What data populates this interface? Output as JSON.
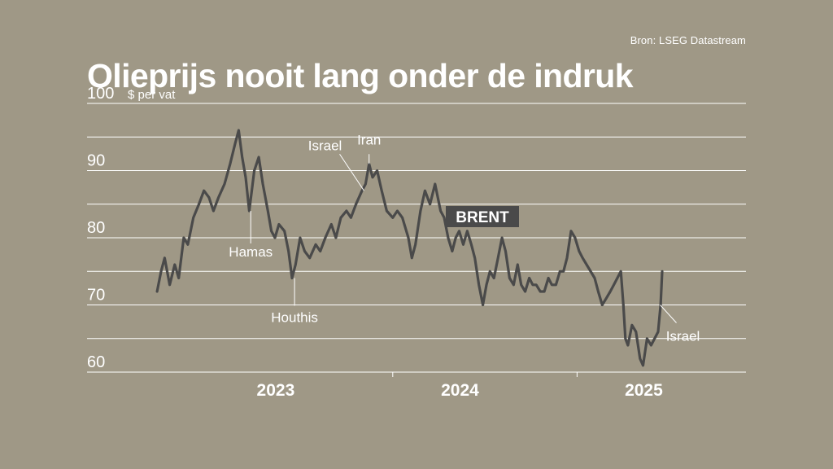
{
  "source": "Bron: LSEG Datastream",
  "title": "Olieprijs nooit lang onder de indruk",
  "chart_data": {
    "type": "line",
    "ylabel": "$ per vat",
    "ylim": [
      60,
      100
    ],
    "y_ticks": [
      60,
      70,
      80,
      90,
      100
    ],
    "xlim": [
      "2022-09-15",
      "2025-07-31"
    ],
    "x_ticks": [
      {
        "label": "2023",
        "date": "2023-07-01"
      },
      {
        "label": "2024",
        "date": "2024-07-01"
      },
      {
        "label": "2025",
        "date": "2025-07-01"
      }
    ],
    "year_boundaries": [
      "2024-01-01",
      "2025-01-01"
    ],
    "grid": true,
    "series": [
      {
        "name": "BRENT",
        "color": "#4a4a4a",
        "points": [
          [
            "2022-09-20",
            72
          ],
          [
            "2022-09-28",
            75
          ],
          [
            "2022-10-05",
            77
          ],
          [
            "2022-10-15",
            73
          ],
          [
            "2022-10-25",
            76
          ],
          [
            "2022-11-02",
            74
          ],
          [
            "2022-11-12",
            80
          ],
          [
            "2022-11-20",
            79
          ],
          [
            "2022-12-01",
            83
          ],
          [
            "2022-12-12",
            85
          ],
          [
            "2022-12-22",
            87
          ],
          [
            "2023-01-01",
            86
          ],
          [
            "2023-01-10",
            84
          ],
          [
            "2023-01-20",
            86
          ],
          [
            "2023-02-01",
            88
          ],
          [
            "2023-02-12",
            91
          ],
          [
            "2023-02-22",
            94
          ],
          [
            "2023-03-01",
            96
          ],
          [
            "2023-03-08",
            92
          ],
          [
            "2023-03-15",
            89
          ],
          [
            "2023-03-22",
            84
          ],
          [
            "2023-04-01",
            90
          ],
          [
            "2023-04-10",
            92
          ],
          [
            "2023-04-18",
            88
          ],
          [
            "2023-04-28",
            84
          ],
          [
            "2023-05-05",
            81
          ],
          [
            "2023-05-12",
            80
          ],
          [
            "2023-05-20",
            82
          ],
          [
            "2023-05-31",
            81
          ],
          [
            "2023-06-08",
            78
          ],
          [
            "2023-06-15",
            74
          ],
          [
            "2023-06-22",
            76
          ],
          [
            "2023-07-01",
            80
          ],
          [
            "2023-07-10",
            78
          ],
          [
            "2023-07-20",
            77
          ],
          [
            "2023-08-01",
            79
          ],
          [
            "2023-08-10",
            78
          ],
          [
            "2023-08-20",
            80
          ],
          [
            "2023-09-01",
            82
          ],
          [
            "2023-09-10",
            80
          ],
          [
            "2023-09-20",
            83
          ],
          [
            "2023-10-01",
            84
          ],
          [
            "2023-10-10",
            83
          ],
          [
            "2023-10-20",
            85
          ],
          [
            "2023-11-01",
            87
          ],
          [
            "2023-11-08",
            88
          ],
          [
            "2023-11-15",
            91
          ],
          [
            "2023-11-22",
            89
          ],
          [
            "2023-12-01",
            90
          ],
          [
            "2023-12-10",
            87
          ],
          [
            "2023-12-20",
            84
          ],
          [
            "2024-01-01",
            83
          ],
          [
            "2024-01-10",
            84
          ],
          [
            "2024-01-20",
            83
          ],
          [
            "2024-02-01",
            80
          ],
          [
            "2024-02-08",
            77
          ],
          [
            "2024-02-15",
            79
          ],
          [
            "2024-02-25",
            84
          ],
          [
            "2024-03-05",
            87
          ],
          [
            "2024-03-15",
            85
          ],
          [
            "2024-03-25",
            88
          ],
          [
            "2024-04-05",
            84
          ],
          [
            "2024-04-12",
            83
          ],
          [
            "2024-04-20",
            80
          ],
          [
            "2024-04-28",
            78
          ],
          [
            "2024-05-05",
            80
          ],
          [
            "2024-05-12",
            81
          ],
          [
            "2024-05-20",
            79
          ],
          [
            "2024-05-28",
            81
          ],
          [
            "2024-06-05",
            79
          ],
          [
            "2024-06-12",
            77
          ],
          [
            "2024-06-20",
            73
          ],
          [
            "2024-06-28",
            70
          ],
          [
            "2024-07-05",
            73
          ],
          [
            "2024-07-12",
            75
          ],
          [
            "2024-07-20",
            74
          ],
          [
            "2024-07-28",
            77
          ],
          [
            "2024-08-05",
            80
          ],
          [
            "2024-08-12",
            78
          ],
          [
            "2024-08-20",
            74
          ],
          [
            "2024-08-28",
            73
          ],
          [
            "2024-09-05",
            76
          ],
          [
            "2024-09-12",
            73
          ],
          [
            "2024-09-20",
            72
          ],
          [
            "2024-09-28",
            74
          ],
          [
            "2024-10-05",
            73
          ],
          [
            "2024-10-12",
            73
          ],
          [
            "2024-10-20",
            72
          ],
          [
            "2024-10-28",
            72
          ],
          [
            "2024-11-05",
            74
          ],
          [
            "2024-11-12",
            73
          ],
          [
            "2024-11-20",
            73
          ],
          [
            "2024-11-28",
            75
          ],
          [
            "2024-12-05",
            75
          ],
          [
            "2024-12-12",
            77
          ],
          [
            "2024-12-20",
            81
          ],
          [
            "2024-12-28",
            80
          ],
          [
            "2025-01-05",
            78
          ],
          [
            "2025-01-12",
            77
          ],
          [
            "2025-01-20",
            76
          ],
          [
            "2025-01-28",
            75
          ],
          [
            "2025-02-05",
            74
          ],
          [
            "2025-02-12",
            72
          ],
          [
            "2025-02-20",
            70
          ],
          [
            "2025-02-28",
            71
          ],
          [
            "2025-03-08",
            72
          ],
          [
            "2025-03-15",
            73
          ],
          [
            "2025-03-22",
            74
          ],
          [
            "2025-03-29",
            75
          ],
          [
            "2025-04-03",
            70
          ],
          [
            "2025-04-07",
            65
          ],
          [
            "2025-04-12",
            64
          ],
          [
            "2025-04-20",
            67
          ],
          [
            "2025-04-28",
            66
          ],
          [
            "2025-05-06",
            62
          ],
          [
            "2025-05-12",
            61
          ],
          [
            "2025-05-20",
            65
          ],
          [
            "2025-05-28",
            64
          ],
          [
            "2025-06-04",
            65
          ],
          [
            "2025-06-11",
            66
          ],
          [
            "2025-06-16",
            70
          ],
          [
            "2025-06-19",
            75
          ]
        ]
      }
    ],
    "series_label": "BRENT",
    "annotations": [
      {
        "text": "Hamas",
        "date": "2023-03-25",
        "value": 84
      },
      {
        "text": "Houthis",
        "date": "2023-06-20",
        "value": 74
      },
      {
        "text": "Israel",
        "date": "2023-11-05",
        "value": 87
      },
      {
        "text": "Iran",
        "date": "2023-11-15",
        "value": 91
      },
      {
        "text": "Israel",
        "date": "2025-06-15",
        "value": 70
      }
    ]
  }
}
